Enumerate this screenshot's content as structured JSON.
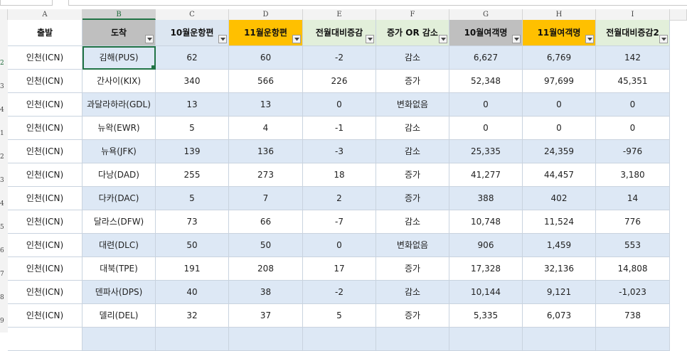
{
  "formula_bar": {
    "name_box": "",
    "content": ""
  },
  "column_letters": [
    "A",
    "B",
    "C",
    "D",
    "E",
    "F",
    "G",
    "H",
    "I"
  ],
  "selected_column": "B",
  "row_numbers": [
    "2",
    "3",
    "4",
    "1",
    "2",
    "3",
    "4",
    "5",
    "6",
    "7",
    "8",
    "9"
  ],
  "selected_row_number": "2",
  "headers": [
    "출발",
    "도착",
    "10월운항편",
    "11월운항편",
    "전월대비증감",
    "증가 OR 감소",
    "10월여객명",
    "11월여객명",
    "전월대비증감2"
  ],
  "rows": [
    [
      "인천(ICN)",
      "김해(PUS)",
      "62",
      "60",
      "-2",
      "감소",
      "6,627",
      "6,769",
      "142"
    ],
    [
      "인천(ICN)",
      "간사이(KIX)",
      "340",
      "566",
      "226",
      "증가",
      "52,348",
      "97,699",
      "45,351"
    ],
    [
      "인천(ICN)",
      "과달라하라(GDL)",
      "13",
      "13",
      "0",
      "변화없음",
      "0",
      "0",
      "0"
    ],
    [
      "인천(ICN)",
      "뉴왁(EWR)",
      "5",
      "4",
      "-1",
      "감소",
      "0",
      "0",
      "0"
    ],
    [
      "인천(ICN)",
      "뉴욕(JFK)",
      "139",
      "136",
      "-3",
      "감소",
      "25,335",
      "24,359",
      "-976"
    ],
    [
      "인천(ICN)",
      "다낭(DAD)",
      "255",
      "273",
      "18",
      "증가",
      "41,277",
      "44,457",
      "3,180"
    ],
    [
      "인천(ICN)",
      "다카(DAC)",
      "5",
      "7",
      "2",
      "증가",
      "388",
      "402",
      "14"
    ],
    [
      "인천(ICN)",
      "달라스(DFW)",
      "73",
      "66",
      "-7",
      "감소",
      "10,748",
      "11,524",
      "776"
    ],
    [
      "인천(ICN)",
      "대련(DLC)",
      "50",
      "50",
      "0",
      "변화없음",
      "906",
      "1,459",
      "553"
    ],
    [
      "인천(ICN)",
      "대북(TPE)",
      "191",
      "208",
      "17",
      "증가",
      "17,328",
      "32,136",
      "14,808"
    ],
    [
      "인천(ICN)",
      "덴파사(DPS)",
      "40",
      "38",
      "-2",
      "감소",
      "10,144",
      "9,121",
      "-1,023"
    ],
    [
      "인천(ICN)",
      "델리(DEL)",
      "32",
      "37",
      "5",
      "증가",
      "5,335",
      "6,073",
      "738"
    ]
  ],
  "colors": {
    "header_gray": "#bfbfbf",
    "header_orange": "#ffc000",
    "header_green": "#e2efda",
    "header_blue": "#dce6f1",
    "band_blue": "#dde8f5",
    "selection_green": "#217346"
  },
  "icons": {
    "filter": "filter-dropdown-icon"
  }
}
